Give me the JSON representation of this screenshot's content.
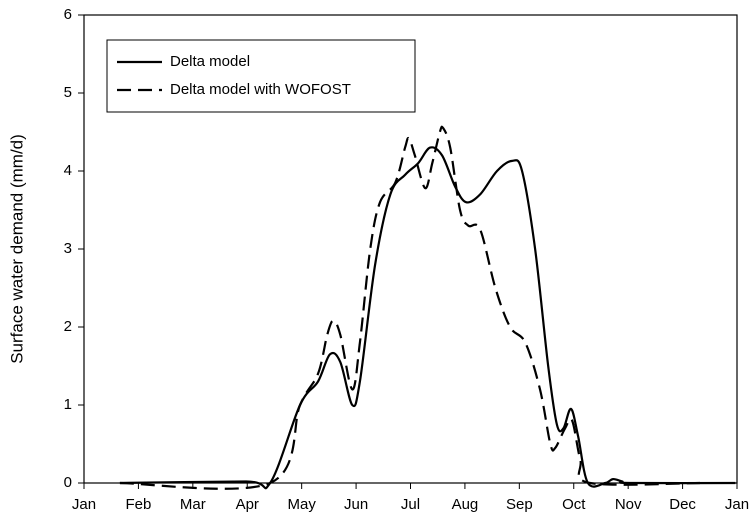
{
  "chart_data": {
    "type": "line",
    "ylabel": "Surface water demand  (mm/d)",
    "xlim": [
      0,
      12
    ],
    "xticks": [
      {
        "value": 0,
        "label": "Jan"
      },
      {
        "value": 1,
        "label": "Feb"
      },
      {
        "value": 2,
        "label": "Mar"
      },
      {
        "value": 3,
        "label": "Apr"
      },
      {
        "value": 4,
        "label": "May"
      },
      {
        "value": 5,
        "label": "Jun"
      },
      {
        "value": 6,
        "label": "Jul"
      },
      {
        "value": 7,
        "label": "Aug"
      },
      {
        "value": 8,
        "label": "Sep"
      },
      {
        "value": 9,
        "label": "Oct"
      },
      {
        "value": 10,
        "label": "Nov"
      },
      {
        "value": 11,
        "label": "Dec"
      },
      {
        "value": 12,
        "label": "Jan"
      }
    ],
    "ylim": [
      0,
      6
    ],
    "yticks": [
      0,
      1,
      2,
      3,
      4,
      5,
      6
    ],
    "legend": "upper left",
    "series": [
      {
        "name": "Delta model",
        "color": "#000000",
        "dash": "solid",
        "x": [
          0.66,
          2.98,
          3.42,
          3.97,
          4.3,
          4.52,
          4.71,
          4.93,
          5.07,
          5.35,
          5.63,
          5.9,
          6.14,
          6.36,
          6.58,
          6.82,
          7.02,
          7.28,
          7.59,
          7.87,
          8.05,
          8.29,
          8.53,
          8.69,
          8.81,
          8.95,
          9.08,
          9.26,
          9.58,
          9.72,
          9.89,
          10.04,
          11.97
        ],
        "values": [
          0,
          0.02,
          0,
          1.0,
          1.3,
          1.65,
          1.55,
          1.0,
          1.3,
          2.8,
          3.7,
          3.95,
          4.1,
          4.3,
          4.2,
          3.8,
          3.6,
          3.7,
          4.0,
          4.13,
          4.0,
          3.0,
          1.5,
          0.75,
          0.7,
          0.95,
          0.6,
          0,
          0,
          0.05,
          0.02,
          0,
          0
        ]
      },
      {
        "name": "Delta model with WOFOST",
        "color": "#000000",
        "dash": "dashed",
        "x": [
          0.66,
          3.42,
          3.97,
          4.3,
          4.47,
          4.58,
          4.71,
          4.93,
          5.07,
          5.26,
          5.44,
          5.72,
          5.9,
          5.97,
          6.08,
          6.27,
          6.4,
          6.54,
          6.6,
          6.73,
          6.91,
          7.06,
          7.28,
          7.56,
          7.83,
          8.11,
          8.38,
          8.57,
          8.66,
          8.84,
          8.97,
          9.12,
          9.3,
          11.32
        ],
        "values": [
          0,
          0,
          1.0,
          1.4,
          1.9,
          2.08,
          1.9,
          1.2,
          1.8,
          3.0,
          3.6,
          3.85,
          4.3,
          4.42,
          4.2,
          3.78,
          4.1,
          4.5,
          4.55,
          4.3,
          3.5,
          3.3,
          3.25,
          2.5,
          2.0,
          1.8,
          1.2,
          0.5,
          0.45,
          0.7,
          0.8,
          0.3,
          0,
          0
        ]
      }
    ]
  }
}
